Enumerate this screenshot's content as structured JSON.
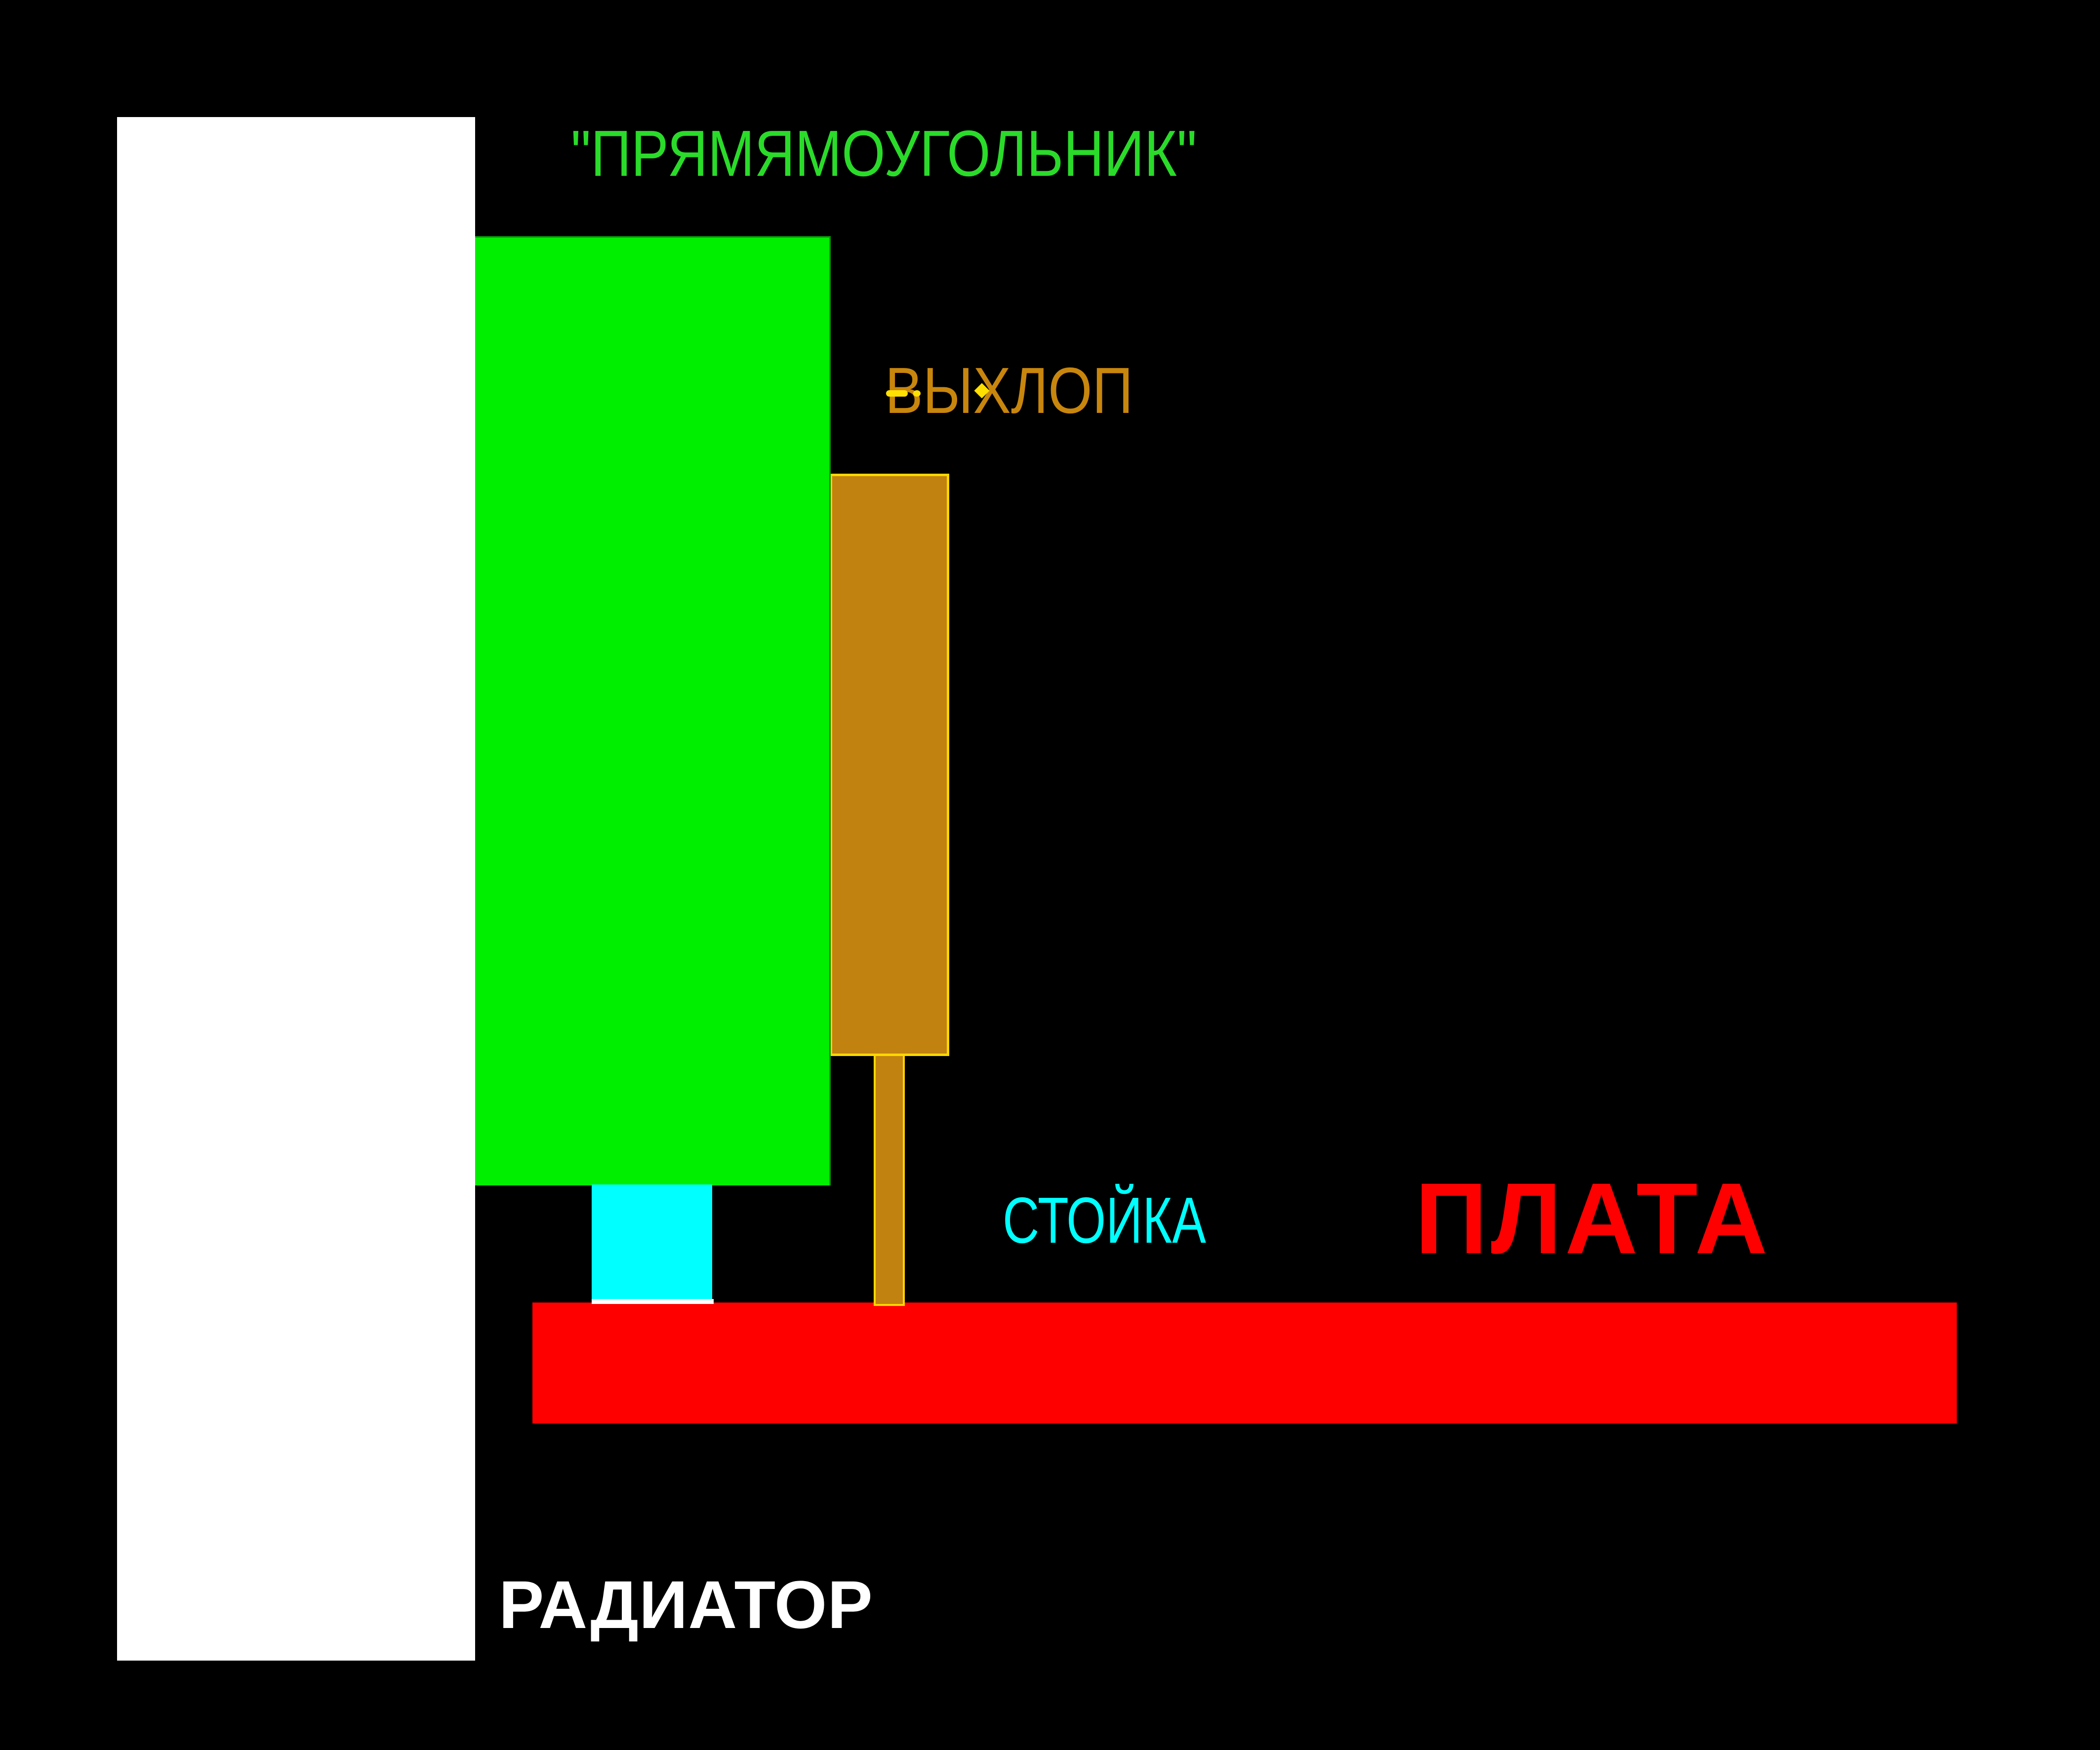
{
  "diagram": {
    "background_color": "#000000",
    "labels": {
      "rectangle": {
        "text": "\"ПРЯМЯМОУГОЛЬНИК\"",
        "color": "#2adb2a"
      },
      "exhaust": {
        "text": "ВЫХЛОП",
        "color": "#c8860d"
      },
      "standoff": {
        "text": "СТОЙКА",
        "color": "#00ffff"
      },
      "board": {
        "text": "ПЛАТА",
        "color": "#ff0000"
      },
      "radiator": {
        "text": "РАДИАТОР",
        "color": "#ffffff"
      }
    },
    "shapes": {
      "radiator": {
        "name": "radiator-slab",
        "fill": "#ffffff"
      },
      "rectangle": {
        "name": "green-component",
        "fill": "#00ee00"
      },
      "exhaust": {
        "name": "exhaust-block",
        "fill": "#c2820f",
        "border": "#ffd700"
      },
      "exhaust_stem": {
        "name": "exhaust-stem",
        "fill": "#c2820f",
        "border": "#ffd700"
      },
      "standoff": {
        "name": "standoff-post",
        "fill": "#00ffff"
      },
      "board": {
        "name": "pcb-board",
        "fill": "#ff0000"
      }
    }
  }
}
